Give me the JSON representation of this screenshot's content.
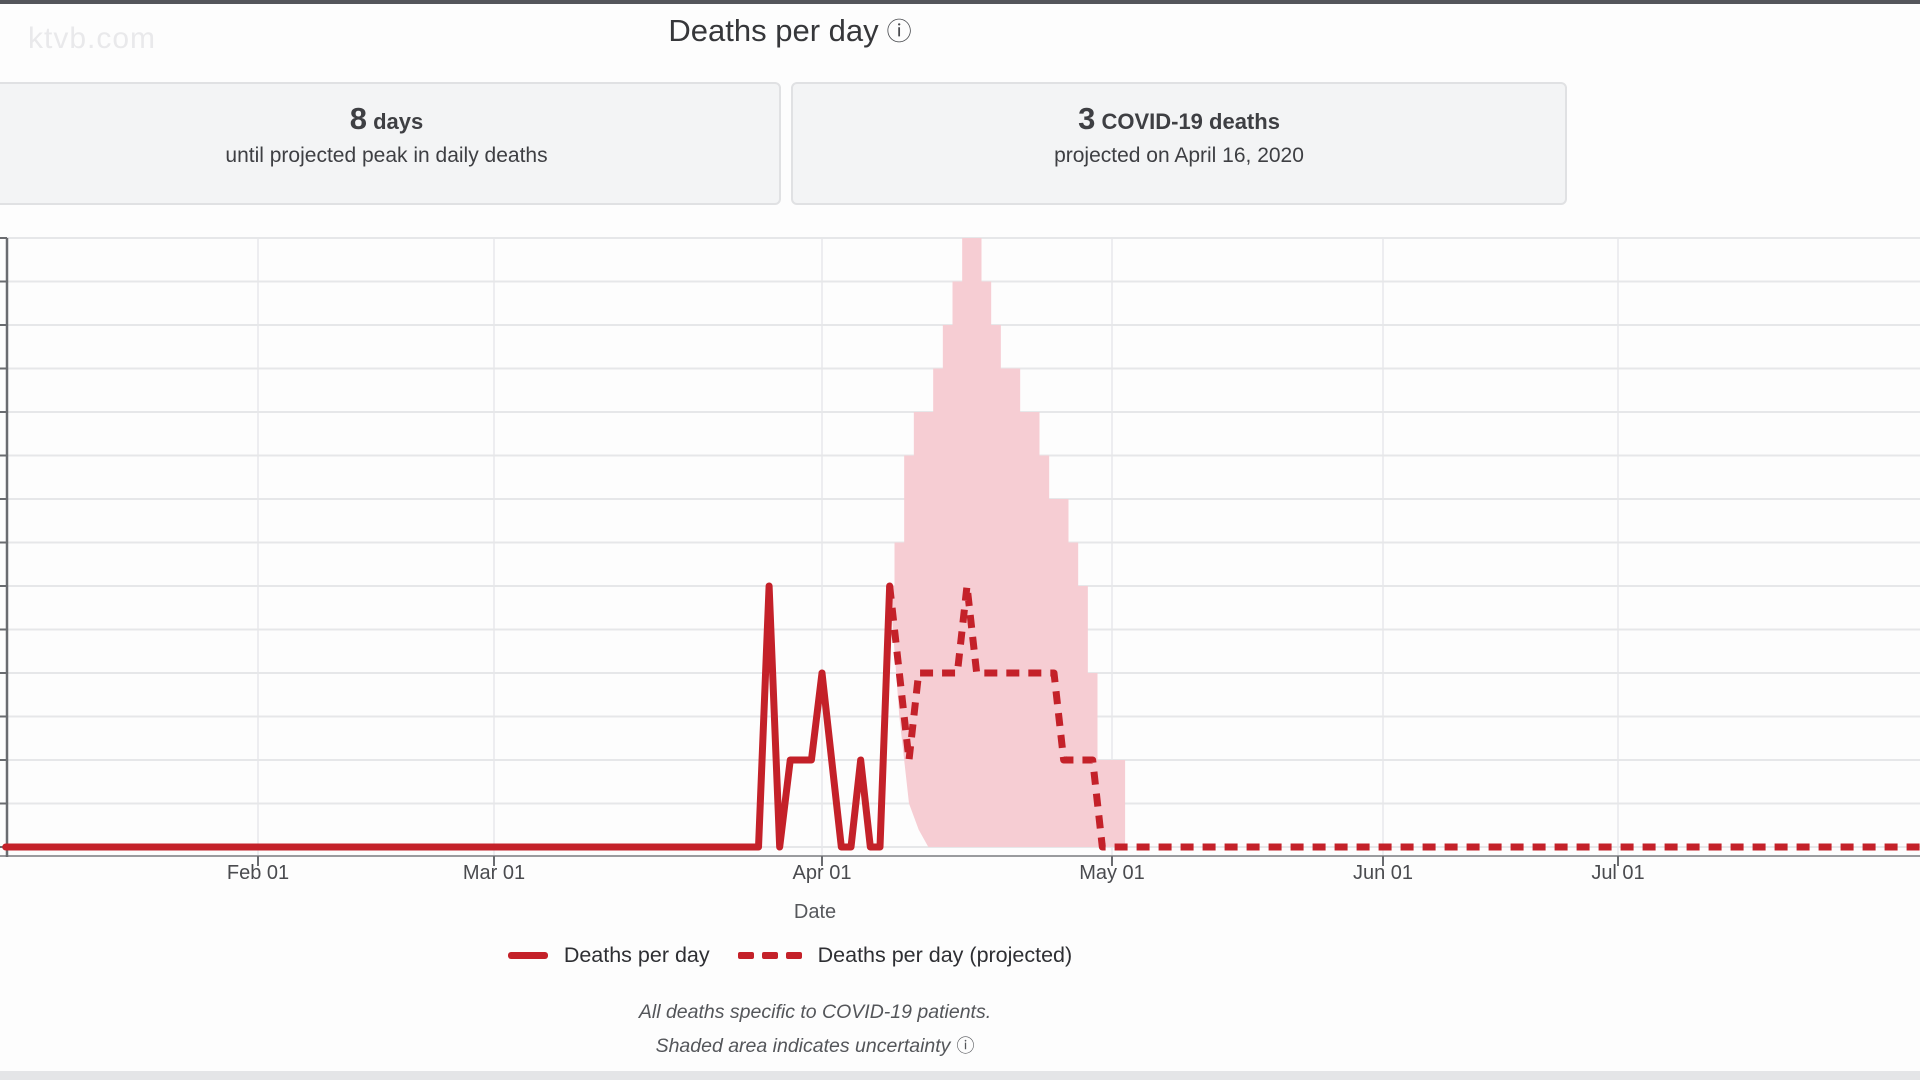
{
  "watermark": "ktvb.com",
  "icons": {
    "info": "ⓘ"
  },
  "header": {
    "title": "Deaths per day"
  },
  "stat_cards": [
    {
      "value": "8",
      "value_suffix": "days",
      "description": "until projected peak in daily deaths"
    },
    {
      "value": "3",
      "value_suffix": "COVID-19 deaths",
      "description": "projected on April 16, 2020"
    }
  ],
  "chart_data": {
    "type": "line",
    "title": "Deaths per day",
    "xlabel": "Date",
    "ylabel": "",
    "ylim": [
      0,
      7
    ],
    "y_grid_step": 0.5,
    "grid": true,
    "y_axis_labels_visible": false,
    "x_ticks": [
      {
        "label": "Feb 01",
        "date": "2020-02-01"
      },
      {
        "label": "Mar 01",
        "date": "2020-03-01"
      },
      {
        "label": "Apr 01",
        "date": "2020-04-01"
      },
      {
        "label": "May 01",
        "date": "2020-05-01"
      },
      {
        "label": "Jun 01",
        "date": "2020-06-01"
      },
      {
        "label": "Jul 01",
        "date": "2020-07-01"
      }
    ],
    "series": [
      {
        "name": "Deaths per day",
        "style": "solid",
        "color": "#c42129",
        "points": [
          [
            "2020-01-01",
            0
          ],
          [
            "2020-03-24",
            0
          ],
          [
            "2020-03-25",
            0
          ],
          [
            "2020-03-26",
            0
          ],
          [
            "2020-03-27",
            3
          ],
          [
            "2020-03-28",
            0
          ],
          [
            "2020-03-29",
            1
          ],
          [
            "2020-03-30",
            1
          ],
          [
            "2020-03-31",
            1
          ],
          [
            "2020-04-01",
            2
          ],
          [
            "2020-04-02",
            1
          ],
          [
            "2020-04-03",
            0
          ],
          [
            "2020-04-04",
            0
          ],
          [
            "2020-04-05",
            1
          ],
          [
            "2020-04-06",
            0
          ],
          [
            "2020-04-07",
            0
          ],
          [
            "2020-04-08",
            3
          ]
        ]
      },
      {
        "name": "Deaths per day (projected)",
        "style": "dashed",
        "color": "#c42129",
        "points": [
          [
            "2020-04-08",
            3
          ],
          [
            "2020-04-09",
            2
          ],
          [
            "2020-04-10",
            1
          ],
          [
            "2020-04-11",
            2
          ],
          [
            "2020-04-12",
            2
          ],
          [
            "2020-04-13",
            2
          ],
          [
            "2020-04-14",
            2
          ],
          [
            "2020-04-15",
            2
          ],
          [
            "2020-04-16",
            3
          ],
          [
            "2020-04-17",
            2
          ],
          [
            "2020-04-18",
            2
          ],
          [
            "2020-04-19",
            2
          ],
          [
            "2020-04-20",
            2
          ],
          [
            "2020-04-21",
            2
          ],
          [
            "2020-04-22",
            2
          ],
          [
            "2020-04-23",
            2
          ],
          [
            "2020-04-24",
            2
          ],
          [
            "2020-04-25",
            2
          ],
          [
            "2020-04-26",
            1
          ],
          [
            "2020-04-27",
            1
          ],
          [
            "2020-04-28",
            1
          ],
          [
            "2020-04-29",
            1
          ],
          [
            "2020-04-30",
            0
          ],
          [
            "2020-05-15",
            0
          ],
          [
            "2020-06-15",
            0
          ],
          [
            "2020-07-15",
            0
          ],
          [
            "2020-08-10",
            0
          ]
        ]
      }
    ],
    "uncertainty_band": {
      "label": "uncertainty interval",
      "color": "#f6cdd3",
      "points_lower_upper": [
        [
          "2020-04-08",
          3,
          3
        ],
        [
          "2020-04-09",
          1.5,
          3.5
        ],
        [
          "2020-04-10",
          0.5,
          4.5
        ],
        [
          "2020-04-11",
          0.2,
          5
        ],
        [
          "2020-04-12",
          0,
          5
        ],
        [
          "2020-04-13",
          0,
          5.5
        ],
        [
          "2020-04-14",
          0,
          6
        ],
        [
          "2020-04-15",
          0,
          6.5
        ],
        [
          "2020-04-16",
          0,
          7
        ],
        [
          "2020-04-17",
          0,
          7
        ],
        [
          "2020-04-18",
          0,
          6.5
        ],
        [
          "2020-04-19",
          0,
          6
        ],
        [
          "2020-04-20",
          0,
          5.5
        ],
        [
          "2020-04-21",
          0,
          5.5
        ],
        [
          "2020-04-22",
          0,
          5
        ],
        [
          "2020-04-23",
          0,
          5
        ],
        [
          "2020-04-24",
          0,
          4.5
        ],
        [
          "2020-04-25",
          0,
          4
        ],
        [
          "2020-04-26",
          0,
          4
        ],
        [
          "2020-04-27",
          0,
          3.5
        ],
        [
          "2020-04-28",
          0,
          3
        ],
        [
          "2020-04-29",
          0,
          2
        ],
        [
          "2020-04-30",
          0,
          1
        ],
        [
          "2020-05-01",
          0,
          1
        ],
        [
          "2020-05-02",
          0,
          1
        ],
        [
          "2020-05-03",
          0,
          0
        ]
      ]
    },
    "legend": [
      {
        "label": "Deaths per day",
        "swatch": "solid-line"
      },
      {
        "label": "Deaths per day (projected)",
        "swatch": "dashed-line"
      }
    ],
    "legend_position": "bottom",
    "footnotes": [
      "All deaths specific to COVID-19 patients.",
      "Shaded area indicates uncertainty"
    ]
  },
  "colors": {
    "line_red": "#c42129",
    "band_pink": "#f6cdd3",
    "grid": "#e6e7e9",
    "grid_vertical": "#ededf0",
    "axis": "#9a9b9e",
    "axis_left": "#6a6c70",
    "card_bg": "#f3f4f5",
    "card_border": "#e0e1e3",
    "top_bar": "#54565b",
    "bottom_bar": "#e4e5e7"
  }
}
